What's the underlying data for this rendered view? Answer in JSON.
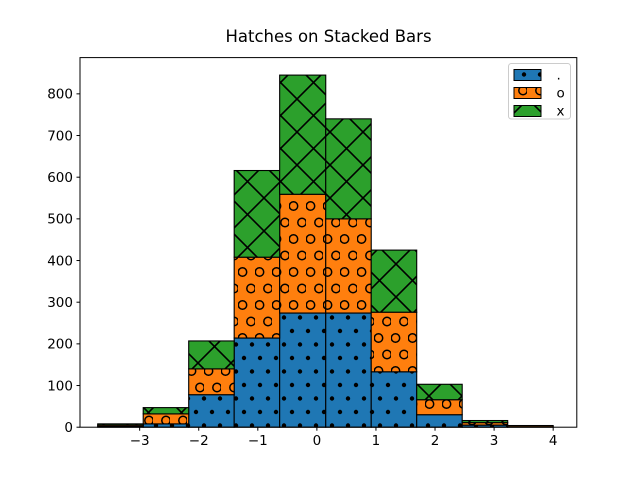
{
  "chart_data": {
    "type": "bar",
    "subtype": "stacked-histogram",
    "title": "Hatches on Stacked Bars",
    "xlabel": "",
    "ylabel": "",
    "stacked": true,
    "grid": false,
    "background": "#ffffff",
    "edge_color": "#000000",
    "bin_edges": [
      -3.71,
      -2.94,
      -2.17,
      -1.4,
      -0.63,
      0.15,
      0.92,
      1.69,
      2.46,
      3.23,
      4.0
    ],
    "series": [
      {
        "name": ".",
        "hatch": "dot",
        "color": "#1f77b4",
        "values": [
          2,
          8,
          78,
          214,
          274,
          274,
          133,
          30,
          5,
          1
        ],
        "cumulative_tops": [
          2,
          8,
          78,
          214,
          274,
          274,
          133,
          30,
          5,
          1
        ]
      },
      {
        "name": "o",
        "hatch": "circle",
        "color": "#ff7f0e",
        "values": [
          3,
          24,
          62,
          194,
          285,
          226,
          143,
          36,
          6,
          3
        ],
        "cumulative_tops": [
          5,
          32,
          140,
          408,
          559,
          500,
          276,
          66,
          11,
          4
        ]
      },
      {
        "name": "x",
        "hatch": "cross",
        "color": "#2ca02c",
        "values": [
          3,
          15,
          67,
          208,
          286,
          240,
          149,
          37,
          5,
          0
        ],
        "cumulative_tops": [
          8,
          47,
          207,
          616,
          845,
          740,
          425,
          103,
          16,
          4
        ]
      }
    ],
    "xlim": [
      -4.01,
      4.4
    ],
    "ylim": [
      0,
      887
    ],
    "x_ticks": [
      {
        "value": -3,
        "label": "−3"
      },
      {
        "value": -2,
        "label": "−2"
      },
      {
        "value": -1,
        "label": "−1"
      },
      {
        "value": 0,
        "label": "0"
      },
      {
        "value": 1,
        "label": "1"
      },
      {
        "value": 2,
        "label": "2"
      },
      {
        "value": 3,
        "label": "3"
      },
      {
        "value": 4,
        "label": "4"
      }
    ],
    "y_ticks": [
      {
        "value": 0,
        "label": "0"
      },
      {
        "value": 100,
        "label": "100"
      },
      {
        "value": 200,
        "label": "200"
      },
      {
        "value": 300,
        "label": "300"
      },
      {
        "value": 400,
        "label": "400"
      },
      {
        "value": 500,
        "label": "500"
      },
      {
        "value": 600,
        "label": "600"
      },
      {
        "value": 700,
        "label": "700"
      },
      {
        "value": 800,
        "label": "800"
      }
    ],
    "legend": {
      "location": "upper right",
      "labels": [
        ".",
        "o",
        "x"
      ],
      "border_color": "#cccccc",
      "fill": "#ffffff"
    }
  }
}
